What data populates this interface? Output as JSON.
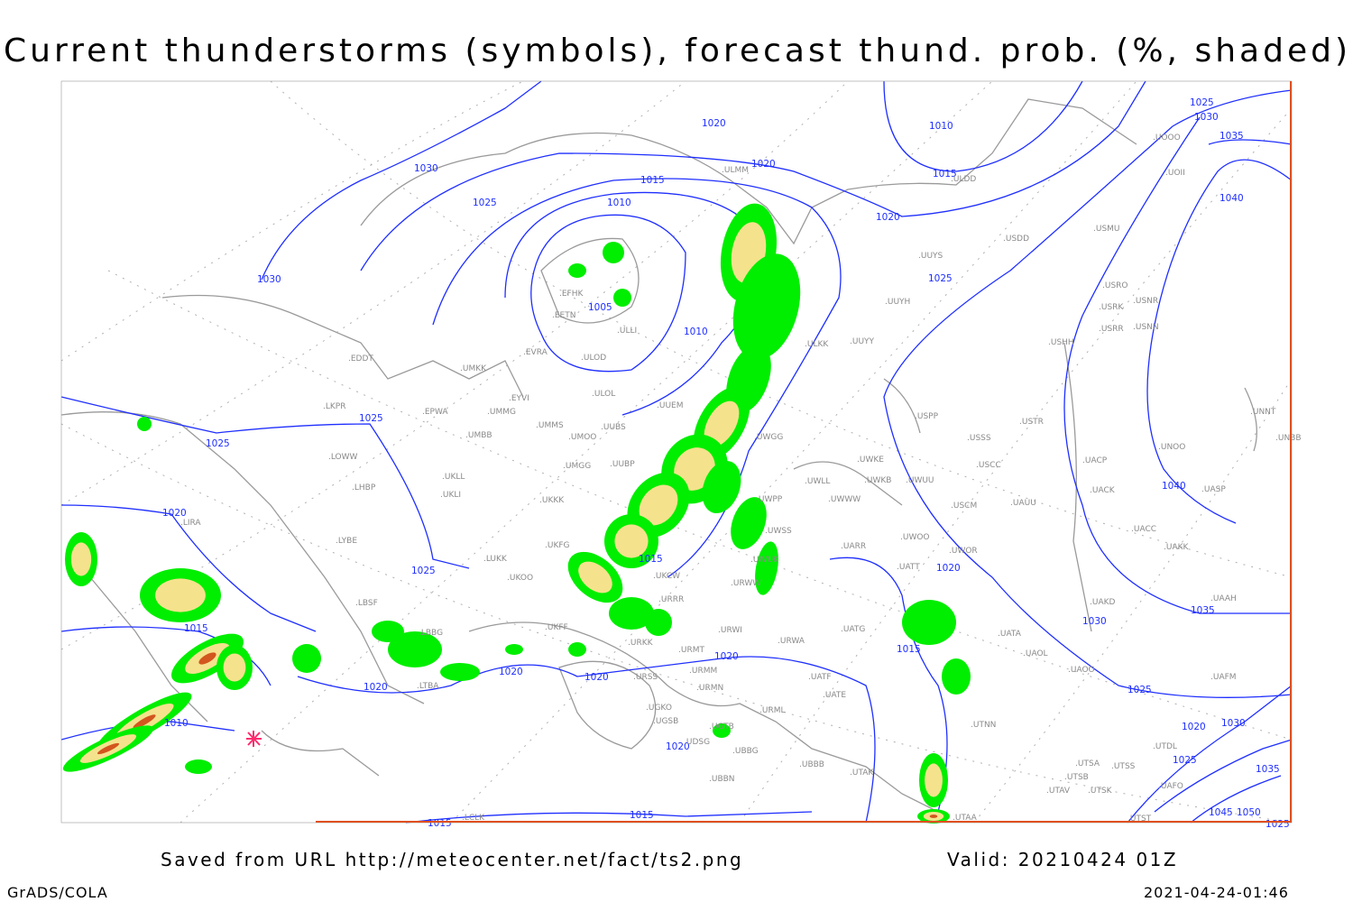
{
  "title": "Current thunderstorms (symbols), forecast thund. prob. (%, shaded)",
  "footer": {
    "source": "Saved from URL http://meteocenter.net/fact/ts2.png",
    "valid": "Valid: 20210424 01Z",
    "software": "GrADS/COLA",
    "timestamp": "2021-04-24-01:46"
  },
  "colors": {
    "isobar": "#1f2fff",
    "coastline": "#9a9a9a",
    "prob_low": "#00ee00",
    "prob_mid": "#f5e28c",
    "prob_high": "#d2561e",
    "current_storm_symbol": "#ff2a6e"
  },
  "isobar_labels": [
    "1020",
    "1020",
    "1015",
    "1010",
    "1025",
    "1030",
    "1030",
    "1005",
    "1010",
    "1010",
    "1015",
    "1020",
    "1025",
    "1025",
    "1030",
    "1035",
    "1040",
    "1040",
    "1025",
    "1025",
    "1020",
    "1025",
    "1015",
    "1015",
    "1010",
    "1020",
    "1020",
    "1020",
    "1020",
    "1020",
    "1020",
    "1015",
    "1030",
    "1035",
    "1025",
    "1020",
    "1030",
    "1025",
    "1035",
    "1045",
    "1050",
    "1025",
    "1015",
    "1015"
  ],
  "stations": [
    "ULMM",
    "ULDD",
    "USDD",
    "USMU",
    "UUYS",
    "UOOO",
    "UOII",
    "USRO",
    "USRK",
    "USNR",
    "USRR",
    "USNN",
    "USHH",
    "UUYH",
    "ULKK",
    "UUYY",
    "EFHK",
    "EETN",
    "ULLI",
    "EVRA",
    "ULOD",
    "UMKK",
    "EDDT",
    "EYVI",
    "ULOL",
    "UUEM",
    "UMMG",
    "EPWA",
    "LKPR",
    "UMMS",
    "UMOO",
    "UUBS",
    "UMBB",
    "LOWW",
    "UWGG",
    "UWKE",
    "UWKB",
    "UWUU",
    "UWLL",
    "UWWW",
    "USPP",
    "USSS",
    "USTR",
    "USCC",
    "UMGG",
    "UUBP",
    "UKLL",
    "UKLI",
    "LHBP",
    "UKKK",
    "UWPP",
    "USCM",
    "UAUU",
    "UACP",
    "UACK",
    "UNOO",
    "UNNT",
    "UNBB",
    "UASP",
    "LIRA",
    "LYBE",
    "UWSS",
    "UARR",
    "UATT",
    "UWOO",
    "UWOR",
    "UACC",
    "UAKK",
    "LUKK",
    "UKFG",
    "UKOO",
    "UKCW",
    "URWW",
    "URRR",
    "UWUK",
    "LBSF",
    "LBBG",
    "UKFF",
    "URKK",
    "URWI",
    "URWA",
    "UATG",
    "UATA",
    "UAOL",
    "UAOO",
    "UAKD",
    "UAAH",
    "UAFM",
    "URMT",
    "URMM",
    "URSS",
    "URMN",
    "UATE",
    "UATF",
    "URML",
    "UGKO",
    "UGSB",
    "UDSG",
    "UGTB",
    "UBBG",
    "UBBN",
    "UBBB",
    "UTAK",
    "UTNN",
    "LTBA",
    "UTSA",
    "UTSS",
    "UTSB",
    "UTAV",
    "UTSK",
    "UTST",
    "UTAA",
    "UTDL",
    "UAFO",
    "LCLK"
  ]
}
